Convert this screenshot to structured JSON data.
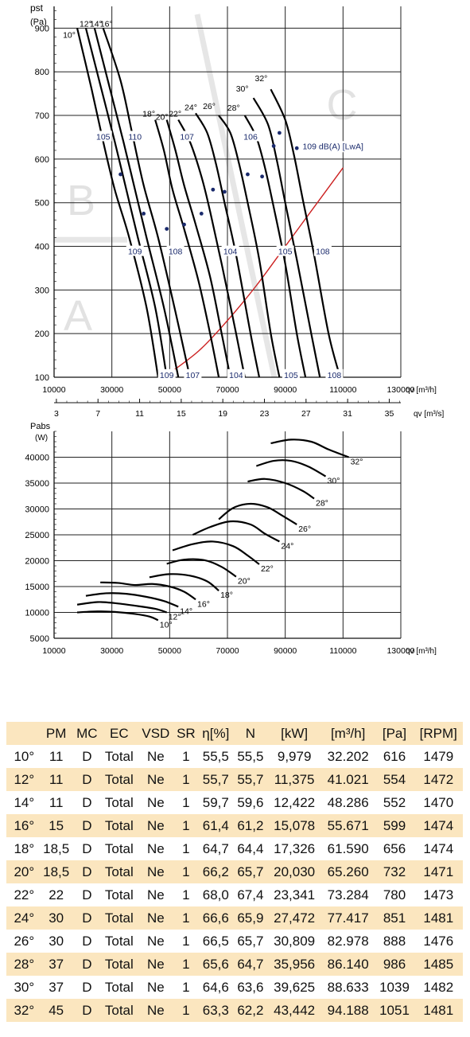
{
  "chart_data": [
    {
      "type": "line",
      "ylabel": "pst",
      "yunit": "(Pa)",
      "xlabel": "qv [m³/h]",
      "xlabel2": "qv [m³/s]",
      "xlim": [
        10000,
        130000
      ],
      "ylim": [
        100,
        950
      ],
      "xticks": [
        "10000",
        "30000",
        "50000",
        "70000",
        "90000",
        "110000",
        "130000"
      ],
      "xtick_values": [
        10000,
        30000,
        50000,
        70000,
        90000,
        110000,
        130000
      ],
      "x2ticks": [
        "3",
        "7",
        "11",
        "15",
        "19",
        "23",
        "27",
        "31",
        "35"
      ],
      "x2tick_values": [
        3,
        7,
        11,
        15,
        19,
        23,
        27,
        31,
        35
      ],
      "yticks": [
        "100",
        "200",
        "300",
        "400",
        "500",
        "600",
        "700",
        "800",
        "900"
      ],
      "ytick_values": [
        100,
        200,
        300,
        400,
        500,
        600,
        700,
        800,
        900
      ],
      "zones": [
        "A",
        "B",
        "C"
      ],
      "series": [
        {
          "name": "10°",
          "points": [
            [
              18000,
              900
            ],
            [
              23000,
              760
            ],
            [
              27000,
              640
            ],
            [
              31000,
              530
            ],
            [
              36000,
              420
            ],
            [
              42000,
              260
            ],
            [
              46000,
              100
            ]
          ]
        },
        {
          "name": "12°",
          "points": [
            [
              21000,
              900
            ],
            [
              26000,
              770
            ],
            [
              31000,
              640
            ],
            [
              35000,
              530
            ],
            [
              39000,
              420
            ],
            [
              45000,
              260
            ],
            [
              49000,
              100
            ]
          ]
        },
        {
          "name": "14°",
          "points": [
            [
              24000,
              900
            ],
            [
              29000,
              770
            ],
            [
              34000,
              640
            ],
            [
              38000,
              530
            ],
            [
              42000,
              420
            ],
            [
              48000,
              260
            ],
            [
              53000,
              100
            ]
          ]
        },
        {
          "name": "16°",
          "points": [
            [
              27000,
              900
            ],
            [
              33000,
              780
            ],
            [
              37000,
              660
            ],
            [
              41000,
              540
            ],
            [
              46000,
              420
            ],
            [
              52000,
              250
            ],
            [
              57000,
              100
            ]
          ]
        },
        {
          "name": "18°",
          "points": [
            [
              45000,
              690
            ],
            [
              48000,
              620
            ],
            [
              51000,
              530
            ],
            [
              55000,
              440
            ],
            [
              60000,
              320
            ],
            [
              64000,
              200
            ],
            [
              67000,
              100
            ]
          ]
        },
        {
          "name": "20°",
          "points": [
            [
              49000,
              690
            ],
            [
              52000,
              620
            ],
            [
              55000,
              540
            ],
            [
              59000,
              450
            ],
            [
              64000,
              330
            ],
            [
              68000,
              200
            ],
            [
              71000,
              100
            ]
          ]
        },
        {
          "name": "22°",
          "points": [
            [
              53000,
              690
            ],
            [
              57000,
              640
            ],
            [
              61000,
              560
            ],
            [
              64000,
              480
            ],
            [
              68000,
              360
            ],
            [
              73000,
              200
            ],
            [
              76000,
              100
            ]
          ]
        },
        {
          "name": "24°",
          "points": [
            [
              59000,
              705
            ],
            [
              63000,
              660
            ],
            [
              66000,
              590
            ],
            [
              69000,
              500
            ],
            [
              73000,
              380
            ],
            [
              78000,
              200
            ],
            [
              81000,
              100
            ]
          ]
        },
        {
          "name": "26°",
          "points": [
            [
              67000,
              700
            ],
            [
              71000,
              660
            ],
            [
              74000,
              590
            ],
            [
              77000,
              500
            ],
            [
              81000,
              370
            ],
            [
              85000,
              200
            ],
            [
              88000,
              100
            ]
          ]
        },
        {
          "name": "28°",
          "points": [
            [
              76000,
              700
            ],
            [
              80000,
              650
            ],
            [
              83000,
              580
            ],
            [
              86000,
              490
            ],
            [
              90000,
              360
            ],
            [
              94000,
              200
            ],
            [
              97000,
              100
            ]
          ]
        },
        {
          "name": "30°",
          "points": [
            [
              79000,
              740
            ],
            [
              84000,
              680
            ],
            [
              87000,
              600
            ],
            [
              90000,
              500
            ],
            [
              94000,
              370
            ],
            [
              99000,
              200
            ],
            [
              102000,
              100
            ]
          ]
        },
        {
          "name": "32°",
          "points": [
            [
              85000,
              760
            ],
            [
              90000,
              690
            ],
            [
              93000,
              610
            ],
            [
              96000,
              510
            ],
            [
              100000,
              380
            ],
            [
              105000,
              200
            ],
            [
              109000,
              100
            ]
          ]
        }
      ],
      "system_curve": {
        "points": [
          [
            48000,
            100
          ],
          [
            60000,
            160
          ],
          [
            70000,
            230
          ],
          [
            80000,
            310
          ],
          [
            90000,
            400
          ],
          [
            100000,
            490
          ],
          [
            110000,
            580
          ]
        ],
        "color": "#cc2020"
      },
      "markers": [
        [
          33000,
          565
        ],
        [
          41000,
          475
        ],
        [
          49000,
          440
        ],
        [
          55000,
          450
        ],
        [
          61000,
          475
        ],
        [
          65000,
          530
        ],
        [
          69000,
          525
        ],
        [
          77000,
          565
        ],
        [
          82000,
          560
        ],
        [
          86000,
          630
        ],
        [
          88000,
          660
        ],
        [
          94000,
          625
        ]
      ],
      "labels": [
        {
          "text": "105",
          "x": 27000,
          "y": 650
        },
        {
          "text": "110",
          "x": 38000,
          "y": 650
        },
        {
          "text": "107",
          "x": 56000,
          "y": 650
        },
        {
          "text": "106",
          "x": 78000,
          "y": 650
        },
        {
          "text": "109",
          "x": 38000,
          "y": 387
        },
        {
          "text": "108",
          "x": 52000,
          "y": 387
        },
        {
          "text": "104",
          "x": 71000,
          "y": 387
        },
        {
          "text": "105",
          "x": 90000,
          "y": 387
        },
        {
          "text": "108",
          "x": 103000,
          "y": 387
        },
        {
          "text": "109",
          "x": 49000,
          "y": 104
        },
        {
          "text": "107",
          "x": 58000,
          "y": 104
        },
        {
          "text": "104",
          "x": 73000,
          "y": 104
        },
        {
          "text": "105",
          "x": 92000,
          "y": 104
        },
        {
          "text": "108",
          "x": 107000,
          "y": 104
        }
      ],
      "annotation": "109 dB(A) [LwA]"
    },
    {
      "type": "line",
      "ylabel": "Pabs",
      "yunit": "(W)",
      "xlabel": "qv [m³/h]",
      "xlim": [
        10000,
        130000
      ],
      "ylim": [
        5000,
        45000
      ],
      "xticks": [
        "10000",
        "30000",
        "50000",
        "70000",
        "90000",
        "110000",
        "130000"
      ],
      "xtick_values": [
        10000,
        30000,
        50000,
        70000,
        90000,
        110000,
        130000
      ],
      "yticks": [
        "5000",
        "10000",
        "15000",
        "20000",
        "25000",
        "30000",
        "35000",
        "40000"
      ],
      "ytick_values": [
        5000,
        10000,
        15000,
        20000,
        25000,
        30000,
        35000,
        40000
      ],
      "series": [
        {
          "name": "10°",
          "points": [
            [
              18000,
              10000
            ],
            [
              25000,
              10200
            ],
            [
              31000,
              10100
            ],
            [
              38000,
              9700
            ],
            [
              43000,
              9200
            ],
            [
              46000,
              8500
            ]
          ]
        },
        {
          "name": "12°",
          "points": [
            [
              18000,
              11500
            ],
            [
              25000,
              12000
            ],
            [
              31000,
              11800
            ],
            [
              38000,
              11300
            ],
            [
              45000,
              10700
            ],
            [
              49000,
              10000
            ]
          ]
        },
        {
          "name": "14°",
          "points": [
            [
              21000,
              13200
            ],
            [
              28000,
              13700
            ],
            [
              35000,
              13600
            ],
            [
              42000,
              13000
            ],
            [
              48000,
              12200
            ],
            [
              53000,
              11100
            ]
          ]
        },
        {
          "name": "16°",
          "points": [
            [
              26000,
              15800
            ],
            [
              32000,
              15700
            ],
            [
              38000,
              15300
            ],
            [
              44000,
              15500
            ],
            [
              50000,
              15000
            ],
            [
              55000,
              14000
            ],
            [
              59000,
              12500
            ]
          ]
        },
        {
          "name": "18°",
          "points": [
            [
              43000,
              16800
            ],
            [
              50000,
              17400
            ],
            [
              57000,
              17100
            ],
            [
              63000,
              16000
            ],
            [
              67000,
              14200
            ]
          ]
        },
        {
          "name": "20°",
          "points": [
            [
              49000,
              19400
            ],
            [
              55000,
              20200
            ],
            [
              62000,
              20100
            ],
            [
              68000,
              18800
            ],
            [
              73000,
              16900
            ]
          ]
        },
        {
          "name": "22°",
          "points": [
            [
              51000,
              22000
            ],
            [
              58000,
              23200
            ],
            [
              65000,
              23700
            ],
            [
              72000,
              22800
            ],
            [
              77000,
              21000
            ],
            [
              81000,
              19300
            ]
          ]
        },
        {
          "name": "24°",
          "points": [
            [
              58000,
              25000
            ],
            [
              64000,
              26500
            ],
            [
              71000,
              27600
            ],
            [
              78000,
              27000
            ],
            [
              83000,
              25200
            ],
            [
              88000,
              23700
            ]
          ]
        },
        {
          "name": "26°",
          "points": [
            [
              67000,
              28000
            ],
            [
              72000,
              30200
            ],
            [
              78000,
              31000
            ],
            [
              84000,
              30300
            ],
            [
              89000,
              28700
            ],
            [
              94000,
              27000
            ]
          ]
        },
        {
          "name": "28°",
          "points": [
            [
              77000,
              35300
            ],
            [
              83000,
              35800
            ],
            [
              90000,
              35000
            ],
            [
              96000,
              33500
            ],
            [
              100000,
              32000
            ]
          ]
        },
        {
          "name": "30°",
          "points": [
            [
              80000,
              38300
            ],
            [
              86000,
              39300
            ],
            [
              92000,
              39300
            ],
            [
              98000,
              38200
            ],
            [
              104000,
              36300
            ]
          ]
        },
        {
          "name": "32°",
          "points": [
            [
              85000,
              42700
            ],
            [
              92000,
              43400
            ],
            [
              99000,
              43000
            ],
            [
              105000,
              41500
            ],
            [
              112000,
              40000
            ]
          ]
        }
      ]
    }
  ],
  "table": {
    "headers": [
      "",
      "PM",
      "MC",
      "EC",
      "VSD",
      "SR",
      "η[%]",
      "N",
      "[kW]",
      "[m³/h]",
      "[Pa]",
      "[RPM]"
    ],
    "rows": [
      [
        "10°",
        "11",
        "D",
        "Total",
        "Ne",
        "1",
        "55,5",
        "55,5",
        "9,979",
        "32.202",
        "616",
        "1479"
      ],
      [
        "12°",
        "11",
        "D",
        "Total",
        "Ne",
        "1",
        "55,7",
        "55,7",
        "11,375",
        "41.021",
        "554",
        "1472"
      ],
      [
        "14°",
        "11",
        "D",
        "Total",
        "Ne",
        "1",
        "59,7",
        "59,6",
        "12,422",
        "48.286",
        "552",
        "1470"
      ],
      [
        "16°",
        "15",
        "D",
        "Total",
        "Ne",
        "1",
        "61,4",
        "61,2",
        "15,078",
        "55.671",
        "599",
        "1474"
      ],
      [
        "18°",
        "18,5",
        "D",
        "Total",
        "Ne",
        "1",
        "64,7",
        "64,4",
        "17,326",
        "61.590",
        "656",
        "1474"
      ],
      [
        "20°",
        "18,5",
        "D",
        "Total",
        "Ne",
        "1",
        "66,2",
        "65,7",
        "20,030",
        "65.260",
        "732",
        "1471"
      ],
      [
        "22°",
        "22",
        "D",
        "Total",
        "Ne",
        "1",
        "68,0",
        "67,4",
        "23,341",
        "73.284",
        "780",
        "1473"
      ],
      [
        "24°",
        "30",
        "D",
        "Total",
        "Ne",
        "1",
        "66,6",
        "65,9",
        "27,472",
        "77.417",
        "851",
        "1481"
      ],
      [
        "26°",
        "30",
        "D",
        "Total",
        "Ne",
        "1",
        "66,5",
        "65,7",
        "30,809",
        "82.978",
        "888",
        "1476"
      ],
      [
        "28°",
        "37",
        "D",
        "Total",
        "Ne",
        "1",
        "65,6",
        "64,7",
        "35,956",
        "86.140",
        "986",
        "1485"
      ],
      [
        "30°",
        "37",
        "D",
        "Total",
        "Ne",
        "1",
        "64,6",
        "63,6",
        "39,625",
        "88.633",
        "1039",
        "1482"
      ],
      [
        "32°",
        "45",
        "D",
        "Total",
        "Ne",
        "1",
        "63,3",
        "62,2",
        "43,442",
        "94.188",
        "1051",
        "1481"
      ]
    ]
  }
}
